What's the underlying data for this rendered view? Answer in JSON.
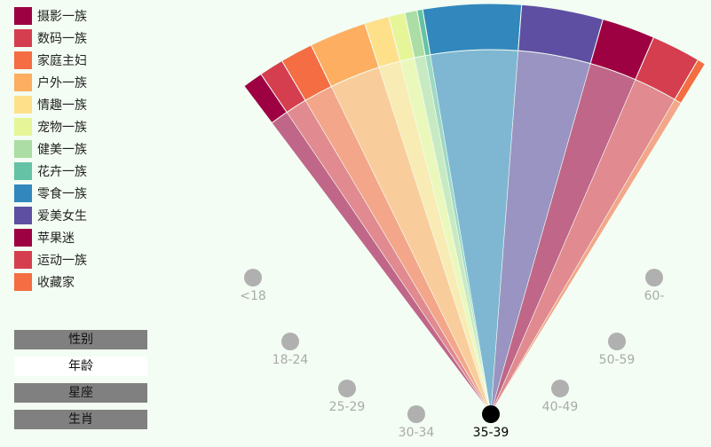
{
  "legend": {
    "items": [
      {
        "label": "摄影一族",
        "color": "#9e0142"
      },
      {
        "label": "数码一族",
        "color": "#d53e4f"
      },
      {
        "label": "家庭主妇",
        "color": "#f46d43"
      },
      {
        "label": "户外一族",
        "color": "#fdae61"
      },
      {
        "label": "情趣一族",
        "color": "#fee08b"
      },
      {
        "label": "宠物一族",
        "color": "#e6f598"
      },
      {
        "label": "健美一族",
        "color": "#abdda4"
      },
      {
        "label": "花卉一族",
        "color": "#66c2a5"
      },
      {
        "label": "零食一族",
        "color": "#3288bd"
      },
      {
        "label": "爱美女生",
        "color": "#5e4fa2"
      },
      {
        "label": "苹果迷",
        "color": "#9e0142"
      },
      {
        "label": "运动一族",
        "color": "#d53e4f"
      },
      {
        "label": "收藏家",
        "color": "#f46d43"
      }
    ]
  },
  "tabs": [
    {
      "label": "性别",
      "active": false
    },
    {
      "label": "年龄",
      "active": true
    },
    {
      "label": "星座",
      "active": false
    },
    {
      "label": "生肖",
      "active": false
    }
  ],
  "chart_data": {
    "type": "radial-fan",
    "selected_age_group": "35-39",
    "age_groups": [
      "<18",
      "18-24",
      "25-29",
      "30-34",
      "35-39",
      "40-49",
      "50-59",
      "60-"
    ],
    "segments": [
      {
        "category": "摄影一族",
        "share": 2.5,
        "color": "#9e0142"
      },
      {
        "category": "数码一族",
        "share": 3.0,
        "color": "#d53e4f"
      },
      {
        "category": "家庭主妇",
        "share": 4.0,
        "color": "#f46d43"
      },
      {
        "category": "户外一族",
        "share": 7.0,
        "color": "#fdae61"
      },
      {
        "category": "情趣一族",
        "share": 3.0,
        "color": "#fee08b"
      },
      {
        "category": "宠物一族",
        "share": 2.0,
        "color": "#e6f598"
      },
      {
        "category": "健美一族",
        "share": 1.5,
        "color": "#abdda4"
      },
      {
        "category": "花卉一族",
        "share": 0.7,
        "color": "#66c2a5"
      },
      {
        "category": "零食一族",
        "share": 12.0,
        "color": "#3288bd"
      },
      {
        "category": "爱美女生",
        "share": 10.0,
        "color": "#5e4fa2"
      },
      {
        "category": "苹果迷",
        "share": 6.5,
        "color": "#9e0142"
      },
      {
        "category": "运动一族",
        "share": 6.0,
        "color": "#d53e4f"
      },
      {
        "category": "收藏家",
        "share": 1.0,
        "color": "#f46d43"
      }
    ]
  }
}
